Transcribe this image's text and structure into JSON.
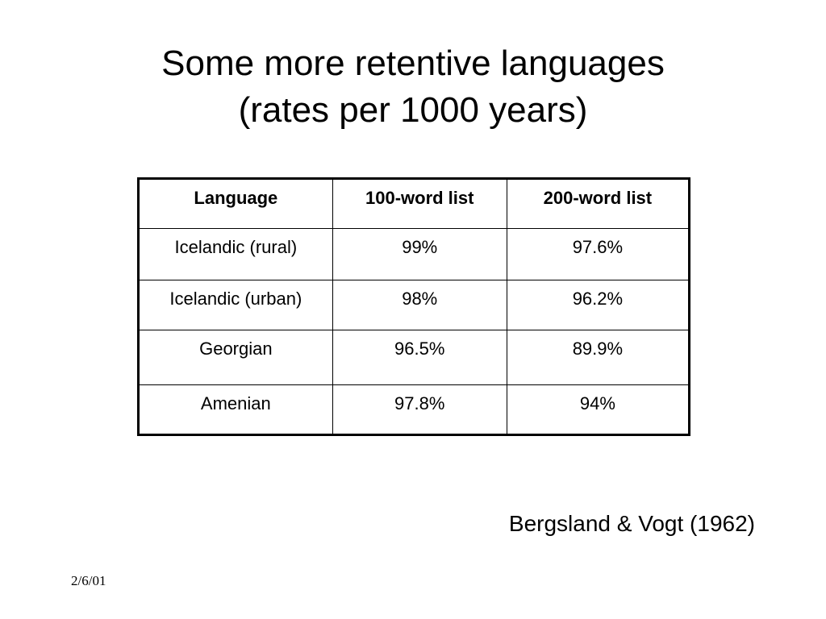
{
  "slide": {
    "title_line1": "Some more retentive languages",
    "title_line2": "(rates per 1000 years)",
    "citation": "Bergsland & Vogt (1962)",
    "date": "2/6/01"
  },
  "table": {
    "headers": [
      "Language",
      "100-word list",
      "200-word list"
    ],
    "rows": [
      [
        "Icelandic (rural)",
        "99%",
        "97.6%"
      ],
      [
        "Icelandic (urban)",
        "98%",
        "96.2%"
      ],
      [
        "Georgian",
        "96.5%",
        "89.9%"
      ],
      [
        "Amenian",
        "97.8%",
        "94%"
      ]
    ]
  }
}
